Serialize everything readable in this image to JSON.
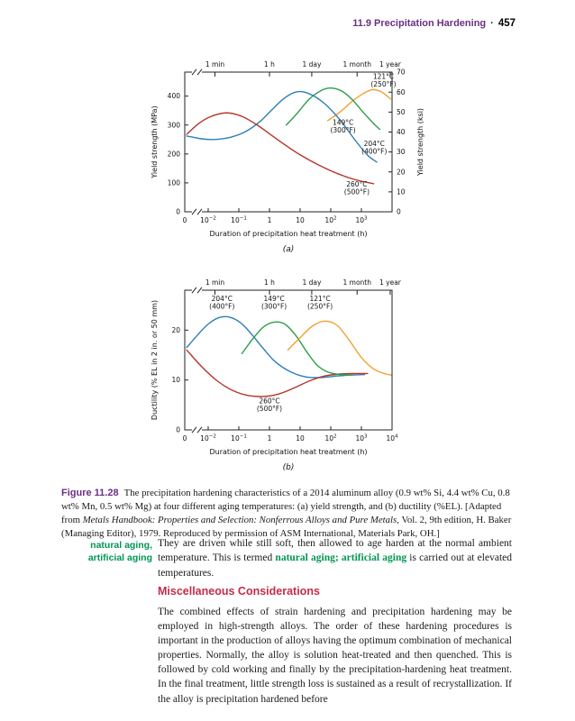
{
  "colors": {
    "accent_purple": "#6B2E86",
    "accent_green": "#009651",
    "accent_red": "#C62B49",
    "axis": "#222222",
    "curve_121c": "#F5A02E",
    "curve_149c": "#2E9E4B",
    "curve_204c": "#2C7FB8",
    "curve_260c": "#B5342B"
  },
  "page": {
    "header": {
      "section": "11.9 Precipitation Hardening",
      "separator": "·",
      "page_number": "457"
    },
    "figure": {
      "caption_label": "Figure 11.28",
      "caption_text": "The precipitation hardening characteristics of a 2014 aluminum alloy (0.9 wt% Si, 4.4 wt% Cu, 0.8 wt% Mn, 0.5 wt% Mg) at four different aging temperatures: (a) yield strength, and (b) ductility (%EL).",
      "caption_source_prefix": " [Adapted from ",
      "caption_source_italic": "Metals Handbook: Properties and Selection: Nonferrous Alloys and Pure Metals,",
      "caption_source_suffix": " Vol. 2, 9th edition, H. Baker (Managing Editor), 1979. Reproduced by permission of ASM International, Materials Park, OH.]"
    },
    "margin_note": {
      "line1": "natural aging,",
      "line2": "artificial aging"
    },
    "paragraph1": {
      "before": "They are driven while still soft, then allowed to age harden at the normal ambient temperature. This is termed ",
      "highlight": "natural aging; artificial aging",
      "after": " is carried out at elevated temperatures."
    },
    "subheading": "Miscellaneous Considerations",
    "paragraph2": "The combined effects of strain hardening and precipitation hardening may be employed in high-strength alloys. The order of these hardening procedures is important in the production of alloys having the optimum combination of mechanical properties. Normally, the alloy is solution heat-treated and then quenched. This is followed by cold working and finally by the precipitation-hardening heat treatment. In the final treatment, little strength loss is sustained as a result of recrystallization. If the alloy is precipitation hardened before"
  },
  "chart_data": [
    {
      "type": "line",
      "id": "yield-strength",
      "sub_label": "(a)",
      "x_axis": {
        "label": "Duration of precipitation heat treatment (h)",
        "zero_label": "0",
        "log_min": -2,
        "log_max": 4,
        "ticks": [
          {
            "log": -2,
            "base": "10",
            "exp": "−2"
          },
          {
            "log": -1,
            "base": "10",
            "exp": "−1"
          },
          {
            "log": 0,
            "base": "1"
          },
          {
            "log": 1,
            "base": "10"
          },
          {
            "log": 2,
            "base": "10",
            "exp": "2"
          },
          {
            "log": 3,
            "base": "10",
            "exp": "3"
          }
        ]
      },
      "top_axis": {
        "ticks": [
          {
            "label": "1 min",
            "log": -1.78
          },
          {
            "label": "1 h",
            "log": 0
          },
          {
            "label": "1 day",
            "log": 1.38
          },
          {
            "label": "1 month",
            "log": 2.86
          },
          {
            "label": "1 year",
            "log": 3.94
          }
        ]
      },
      "y_axis": {
        "label": "Yield strength (MPa)",
        "min": 0,
        "max": 483,
        "ticks": [
          0,
          100,
          200,
          300,
          400
        ]
      },
      "y2_axis": {
        "label": "Yield strength (ksi)",
        "scale": 6.895,
        "ticks": [
          0,
          10,
          20,
          30,
          40,
          50,
          60,
          70
        ]
      },
      "series": [
        {
          "id": "121c",
          "name": "121°C (250°F)",
          "color": "#F5A02E",
          "points": [
            [
              1.9,
              315
            ],
            [
              2.3,
              345
            ],
            [
              2.7,
              382
            ],
            [
              3.05,
              408
            ],
            [
              3.35,
              422
            ],
            [
              3.65,
              415
            ],
            [
              3.95,
              390
            ]
          ]
        },
        {
          "id": "149c",
          "name": "149°C (300°F)",
          "color": "#2E9E4B",
          "points": [
            [
              0.55,
              300
            ],
            [
              0.9,
              340
            ],
            [
              1.3,
              390
            ],
            [
              1.7,
              420
            ],
            [
              2.0,
              428
            ],
            [
              2.35,
              418
            ],
            [
              2.7,
              388
            ],
            [
              3.05,
              345
            ],
            [
              3.4,
              305
            ],
            [
              3.6,
              285
            ]
          ]
        },
        {
          "id": "204c",
          "name": "204°C (400°F)",
          "color": "#2C7FB8",
          "points": [
            [
              -2.7,
              262
            ],
            [
              -2.2,
              252
            ],
            [
              -1.8,
              250
            ],
            [
              -1.3,
              257
            ],
            [
              -0.8,
              276
            ],
            [
              -0.3,
              313
            ],
            [
              0.1,
              355
            ],
            [
              0.5,
              394
            ],
            [
              0.9,
              415
            ],
            [
              1.3,
              408
            ],
            [
              1.8,
              374
            ],
            [
              2.3,
              318
            ],
            [
              2.8,
              247
            ],
            [
              3.2,
              196
            ],
            [
              3.5,
              172
            ]
          ]
        },
        {
          "id": "260c",
          "name": "260°C (500°F)",
          "color": "#B5342B",
          "points": [
            [
              -2.7,
              268
            ],
            [
              -2.3,
              306
            ],
            [
              -1.9,
              330
            ],
            [
              -1.4,
              342
            ],
            [
              -0.9,
              330
            ],
            [
              -0.4,
              300
            ],
            [
              0.05,
              266
            ],
            [
              0.5,
              232
            ],
            [
              1.0,
              197
            ],
            [
              1.6,
              162
            ],
            [
              2.2,
              133
            ],
            [
              2.8,
              111
            ],
            [
              3.4,
              97
            ]
          ]
        }
      ],
      "annotations": [
        {
          "line1": "121°C",
          "line2": "(250°F)",
          "log": 3.72,
          "value": 460
        },
        {
          "line1": "149°C",
          "line2": "(300°F)",
          "log": 2.4,
          "value": 300
        },
        {
          "line1": "204°C",
          "line2": "(400°F)",
          "log": 3.42,
          "value": 228
        },
        {
          "line1": "260°C",
          "line2": "(500°F)",
          "log": 2.85,
          "value": 88
        }
      ]
    },
    {
      "type": "line",
      "id": "ductility",
      "sub_label": "(b)",
      "x_axis": {
        "label": "Duration of precipitation heat treatment (h)",
        "zero_label": "0",
        "log_min": -2,
        "log_max": 4,
        "ticks": [
          {
            "log": -2,
            "base": "10",
            "exp": "−2"
          },
          {
            "log": -1,
            "base": "10",
            "exp": "−1"
          },
          {
            "log": 0,
            "base": "1"
          },
          {
            "log": 1,
            "base": "10"
          },
          {
            "log": 2,
            "base": "10",
            "exp": "2"
          },
          {
            "log": 3,
            "base": "10",
            "exp": "3"
          },
          {
            "log": 4,
            "base": "10",
            "exp": "4"
          }
        ]
      },
      "top_axis": {
        "ticks": [
          {
            "label": "1 min",
            "log": -1.78
          },
          {
            "label": "1 h",
            "log": 0
          },
          {
            "label": "1 day",
            "log": 1.38
          },
          {
            "label": "1 month",
            "log": 2.86
          },
          {
            "label": "1 year",
            "log": 3.94
          }
        ]
      },
      "y_axis": {
        "label": "Ductility (% EL in 2 in. or 50 mm)",
        "min": 0,
        "max": 28,
        "ticks": [
          0,
          10,
          20
        ]
      },
      "series": [
        {
          "id": "204c",
          "name": "204°C (400°F)",
          "color": "#2C7FB8",
          "points": [
            [
              -2.7,
              16.5
            ],
            [
              -2.35,
              19
            ],
            [
              -2.0,
              21.2
            ],
            [
              -1.65,
              22.5
            ],
            [
              -1.3,
              22.6
            ],
            [
              -0.95,
              21.5
            ],
            [
              -0.6,
              19.3
            ],
            [
              -0.2,
              16.3
            ],
            [
              0.2,
              13.6
            ],
            [
              0.7,
              11.6
            ],
            [
              1.2,
              10.6
            ],
            [
              1.7,
              10.5
            ],
            [
              2.2,
              10.8
            ],
            [
              2.7,
              11.0
            ],
            [
              3.1,
              11.1
            ]
          ]
        },
        {
          "id": "260c",
          "name": "260°C (500°F)",
          "color": "#B5342B",
          "points": [
            [
              -2.7,
              16
            ],
            [
              -2.2,
              12.6
            ],
            [
              -1.7,
              9.8
            ],
            [
              -1.2,
              7.9
            ],
            [
              -0.7,
              6.9
            ],
            [
              -0.2,
              6.7
            ],
            [
              0.3,
              7.2
            ],
            [
              0.8,
              8.4
            ],
            [
              1.3,
              9.8
            ],
            [
              1.8,
              10.8
            ],
            [
              2.3,
              11.2
            ],
            [
              2.8,
              11.3
            ],
            [
              3.2,
              11.3
            ]
          ]
        },
        {
          "id": "149c",
          "name": "149°C (300°F)",
          "color": "#2E9E4B",
          "points": [
            [
              -0.9,
              15.3
            ],
            [
              -0.55,
              18.2
            ],
            [
              -0.2,
              20.6
            ],
            [
              0.15,
              21.6
            ],
            [
              0.5,
              21.2
            ],
            [
              0.85,
              19
            ],
            [
              1.2,
              15.8
            ],
            [
              1.55,
              13
            ],
            [
              1.9,
              11.6
            ],
            [
              2.3,
              11.1
            ],
            [
              2.7,
              11.0
            ]
          ]
        },
        {
          "id": "121c",
          "name": "121°C (250°F)",
          "color": "#F5A02E",
          "points": [
            [
              0.6,
              16
            ],
            [
              1.0,
              18.5
            ],
            [
              1.4,
              20.8
            ],
            [
              1.8,
              21.8
            ],
            [
              2.2,
              21
            ],
            [
              2.6,
              18
            ],
            [
              3.0,
              14.5
            ],
            [
              3.4,
              12.2
            ],
            [
              3.8,
              11.2
            ],
            [
              4.0,
              11
            ]
          ]
        }
      ],
      "annotations": [
        {
          "line1": "204°C",
          "line2": "(400°F)",
          "log": -1.55,
          "value": 25.8
        },
        {
          "line1": "149°C",
          "line2": "(300°F)",
          "log": 0.15,
          "value": 25.8
        },
        {
          "line1": "121°C",
          "line2": "(250°F)",
          "log": 1.65,
          "value": 25.8
        },
        {
          "line1": "260°C",
          "line2": "(500°F)",
          "log": 0.0,
          "value": 5.3
        }
      ]
    }
  ]
}
